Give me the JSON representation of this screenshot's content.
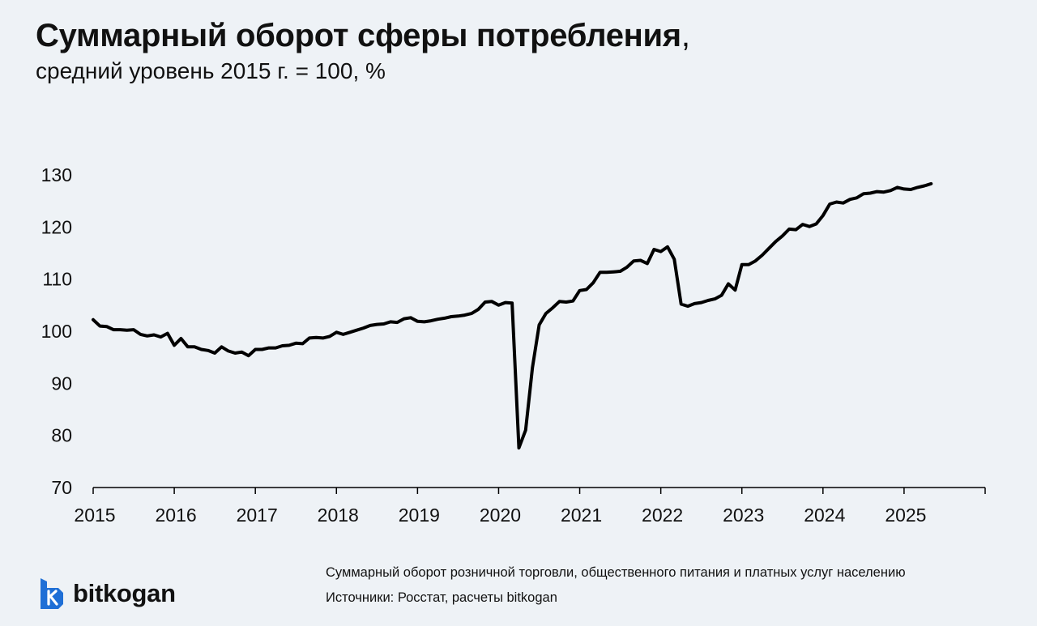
{
  "title": "Суммарный оборот сферы потребления",
  "title_suffix": ",",
  "subtitle": "средний уровень 2015 г. = 100, %",
  "notes": {
    "description": "Суммарный оборот розничной торговли, общественного питания и платных услуг населению",
    "sources": "Источники: Росстат, расчеты bitkogan"
  },
  "logo": {
    "text": "bitkogan",
    "icon": "bitkogan-logo-icon",
    "color": "#1f6fd6"
  },
  "chart_data": {
    "type": "line",
    "title": "",
    "xlabel": "",
    "ylabel": "",
    "ylim": [
      70,
      130
    ],
    "xlim": [
      "2015-01",
      "2026-01"
    ],
    "yticks": [
      70,
      80,
      90,
      100,
      110,
      120,
      130
    ],
    "xticks": [
      "2015",
      "2016",
      "2017",
      "2018",
      "2019",
      "2020",
      "2021",
      "2022",
      "2023",
      "2024",
      "2025"
    ],
    "grid": false,
    "line_color": "#000000",
    "series": [
      {
        "x": [
          "2015-01",
          "2015-02",
          "2015-03",
          "2015-04",
          "2015-05",
          "2015-06",
          "2015-07",
          "2015-08",
          "2015-09",
          "2015-10",
          "2015-11",
          "2015-12",
          "2016-01",
          "2016-02",
          "2016-03",
          "2016-04",
          "2016-05",
          "2016-06",
          "2016-07",
          "2016-08",
          "2016-09",
          "2016-10",
          "2016-11",
          "2016-12",
          "2017-01",
          "2017-02",
          "2017-03",
          "2017-04",
          "2017-05",
          "2017-06",
          "2017-07",
          "2017-08",
          "2017-09",
          "2017-10",
          "2017-11",
          "2017-12",
          "2018-01",
          "2018-02",
          "2018-03",
          "2018-04",
          "2018-05",
          "2018-06",
          "2018-07",
          "2018-08",
          "2018-09",
          "2018-10",
          "2018-11",
          "2018-12",
          "2019-01",
          "2019-02",
          "2019-03",
          "2019-04",
          "2019-05",
          "2019-06",
          "2019-07",
          "2019-08",
          "2019-09",
          "2019-10",
          "2019-11",
          "2019-12",
          "2020-01",
          "2020-02",
          "2020-03",
          "2020-04",
          "2020-05",
          "2020-06",
          "2020-07",
          "2020-08",
          "2020-09",
          "2020-10",
          "2020-11",
          "2020-12",
          "2021-01",
          "2021-02",
          "2021-03",
          "2021-04",
          "2021-05",
          "2021-06",
          "2021-07",
          "2021-08",
          "2021-09",
          "2021-10",
          "2021-11",
          "2021-12",
          "2022-01",
          "2022-02",
          "2022-03",
          "2022-04",
          "2022-05",
          "2022-06",
          "2022-07",
          "2022-08",
          "2022-09",
          "2022-10",
          "2022-11",
          "2022-12",
          "2023-01",
          "2023-02",
          "2023-03",
          "2023-04",
          "2023-05",
          "2023-06",
          "2023-07",
          "2023-08",
          "2023-09",
          "2023-10",
          "2023-11",
          "2023-12",
          "2024-01",
          "2024-02",
          "2024-03",
          "2024-04",
          "2024-05",
          "2024-06",
          "2024-07",
          "2024-08",
          "2024-09",
          "2024-10",
          "2024-11",
          "2024-12",
          "2025-01",
          "2025-02",
          "2025-03",
          "2025-04",
          "2025-05"
        ],
        "values": [
          102.2,
          101.0,
          100.9,
          100.3,
          100.3,
          100.2,
          100.3,
          99.4,
          99.1,
          99.3,
          98.9,
          99.6,
          97.3,
          98.6,
          97.0,
          97.0,
          96.5,
          96.3,
          95.8,
          97.0,
          96.2,
          95.8,
          96.0,
          95.3,
          96.5,
          96.5,
          96.8,
          96.8,
          97.2,
          97.3,
          97.7,
          97.6,
          98.7,
          98.8,
          98.7,
          99.0,
          99.8,
          99.4,
          99.8,
          100.2,
          100.6,
          101.1,
          101.3,
          101.4,
          101.8,
          101.7,
          102.4,
          102.6,
          101.9,
          101.8,
          102.0,
          102.3,
          102.5,
          102.8,
          102.9,
          103.1,
          103.4,
          104.2,
          105.6,
          105.7,
          105.0,
          105.5,
          105.4,
          77.6,
          81.0,
          93.0,
          101.2,
          103.4,
          104.5,
          105.7,
          105.6,
          105.8,
          107.8,
          108.0,
          109.3,
          111.3,
          111.3,
          111.4,
          111.5,
          112.3,
          113.5,
          113.6,
          113.0,
          115.7,
          115.3,
          116.2,
          113.8,
          105.2,
          104.8,
          105.3,
          105.5,
          105.9,
          106.2,
          106.9,
          109.1,
          107.9,
          112.8,
          112.8,
          113.5,
          114.6,
          115.9,
          117.2,
          118.3,
          119.6,
          119.5,
          120.5,
          120.1,
          120.6,
          122.2,
          124.4,
          124.8,
          124.6,
          125.3,
          125.6,
          126.4,
          126.5,
          126.8,
          126.7,
          127.0,
          127.6,
          127.3,
          127.2,
          127.6,
          127.9,
          128.3
        ]
      }
    ]
  }
}
